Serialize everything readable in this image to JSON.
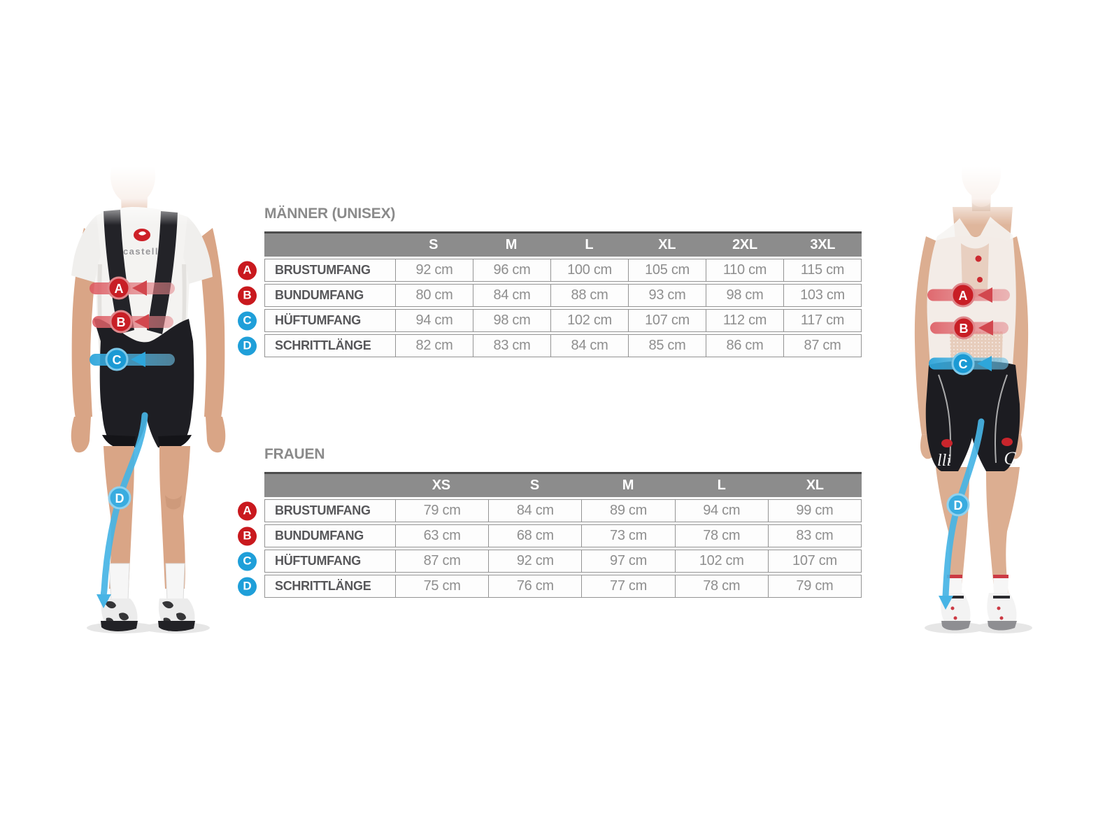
{
  "page": {
    "background": "#ffffff"
  },
  "colors": {
    "header_bg": "#8c8c8c",
    "header_top_border": "#4c4c4c",
    "row_border": "#949494",
    "title_text": "#8a8a8a",
    "label_text": "#57575a",
    "value_text": "#8e8e8e",
    "badge_red": "#c9191e",
    "badge_blue": "#1f9fd9",
    "measure_line_blue": "#47b4e5",
    "arrow_red": "#c81e25"
  },
  "markers": {
    "A": "#c9191e",
    "B": "#c9191e",
    "C": "#1f9fd9",
    "D": "#1f9fd9"
  },
  "figure_markers": {
    "a": "A",
    "b": "B",
    "c": "C",
    "d": "D"
  },
  "tables": [
    {
      "title": "MÄNNER (UNISEX)",
      "sizes": [
        "S",
        "M",
        "L",
        "XL",
        "2XL",
        "3XL"
      ],
      "rows": [
        {
          "marker": "A",
          "label": "BRUSTUMFANG",
          "values": [
            "92 cm",
            "96 cm",
            "100 cm",
            "105 cm",
            "110 cm",
            "115 cm"
          ]
        },
        {
          "marker": "B",
          "label": "BUNDUMFANG",
          "values": [
            "80 cm",
            "84 cm",
            "88 cm",
            "93 cm",
            "98 cm",
            "103 cm"
          ]
        },
        {
          "marker": "C",
          "label": "HÜFTUMFANG",
          "values": [
            "94 cm",
            "98 cm",
            "102 cm",
            "107 cm",
            "112 cm",
            "117 cm"
          ]
        },
        {
          "marker": "D",
          "label": "SCHRITTLÄNGE",
          "values": [
            "82 cm",
            "83 cm",
            "84 cm",
            "85 cm",
            "86 cm",
            "87 cm"
          ]
        }
      ]
    },
    {
      "title": "FRAUEN",
      "sizes": [
        "XS",
        "S",
        "M",
        "L",
        "XL"
      ],
      "rows": [
        {
          "marker": "A",
          "label": "BRUSTUMFANG",
          "values": [
            "79 cm",
            "84 cm",
            "89 cm",
            "94 cm",
            "99 cm"
          ]
        },
        {
          "marker": "B",
          "label": "BUNDUMFANG",
          "values": [
            "63 cm",
            "68 cm",
            "73 cm",
            "78 cm",
            "83 cm"
          ]
        },
        {
          "marker": "C",
          "label": "HÜFTUMFANG",
          "values": [
            "87 cm",
            "92 cm",
            "97 cm",
            "102 cm",
            "107 cm"
          ]
        },
        {
          "marker": "D",
          "label": "SCHRITTLÄNGE",
          "values": [
            "75 cm",
            "76 cm",
            "77 cm",
            "78 cm",
            "79 cm"
          ]
        }
      ]
    }
  ],
  "figures": {
    "male": {
      "brand_text": "castelli"
    },
    "female": {
      "left_thigh_text": "lli",
      "right_thigh_text": "C"
    }
  }
}
